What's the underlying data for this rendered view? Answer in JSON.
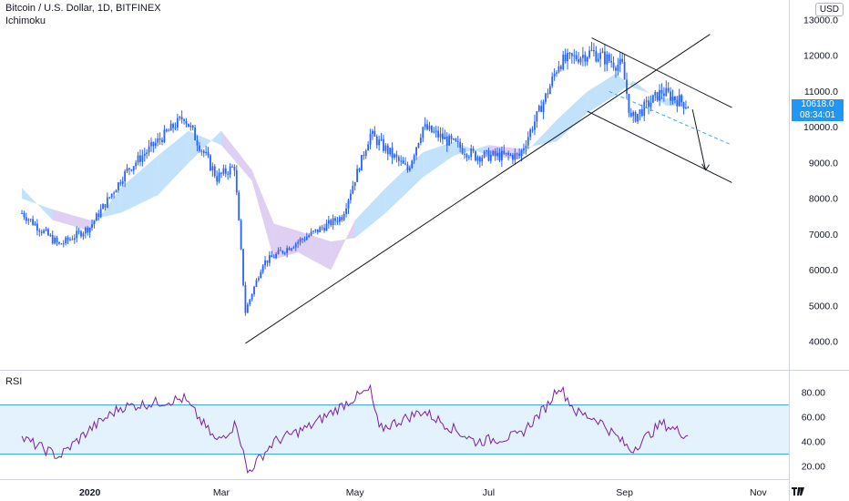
{
  "header": {
    "symbol_title": "Bitcoin / U.S. Dollar, 1D, BITFINEX",
    "indicator": "Ichimoku",
    "currency": "USD",
    "rsi_label": "RSI"
  },
  "price_panel": {
    "last_price": "10618.0",
    "countdown": "08:34:01",
    "last_price_color": "#2196f3"
  },
  "colors": {
    "candle": "#2962ff",
    "cloud_bull": "#90caf9",
    "cloud_bear": "#c4a7e7",
    "rsi_line": "#7b1fa2",
    "rsi_band_fill": "#e3f2fd",
    "rsi_band_line": "#42a5f5",
    "trendline": "#131722"
  },
  "chart_data": [
    {
      "type": "candlestick",
      "title": "Bitcoin / U.S. Dollar, 1D, BITFINEX",
      "indicator": "Ichimoku",
      "ylim": [
        3500,
        13500
      ],
      "yticks": [
        4000,
        5000,
        6000,
        7000,
        8000,
        9000,
        10000,
        11000,
        12000,
        13000
      ],
      "ytick_labels": [
        "4000.0",
        "5000.0",
        "6000.0",
        "7000.0",
        "8000.0",
        "9000.0",
        "10000.0",
        "11000.0",
        "12000.0",
        "13000.0"
      ],
      "xticks": [
        "2020",
        "Mar",
        "May",
        "Jul",
        "Sep",
        "Nov"
      ],
      "close_path": [
        {
          "date": "2019-12-01",
          "price": 7600
        },
        {
          "date": "2019-12-18",
          "price": 6700
        },
        {
          "date": "2020-01-01",
          "price": 7200
        },
        {
          "date": "2020-01-18",
          "price": 8800
        },
        {
          "date": "2020-02-13",
          "price": 10300
        },
        {
          "date": "2020-02-28",
          "price": 8600
        },
        {
          "date": "2020-03-07",
          "price": 8900
        },
        {
          "date": "2020-03-12",
          "price": 4850
        },
        {
          "date": "2020-03-20",
          "price": 6200
        },
        {
          "date": "2020-04-05",
          "price": 6800
        },
        {
          "date": "2020-04-25",
          "price": 7500
        },
        {
          "date": "2020-05-08",
          "price": 9800
        },
        {
          "date": "2020-05-25",
          "price": 8800
        },
        {
          "date": "2020-06-01",
          "price": 10000
        },
        {
          "date": "2020-06-25",
          "price": 9200
        },
        {
          "date": "2020-07-15",
          "price": 9200
        },
        {
          "date": "2020-07-28",
          "price": 11000
        },
        {
          "date": "2020-08-02",
          "price": 11800
        },
        {
          "date": "2020-08-17",
          "price": 12100
        },
        {
          "date": "2020-08-31",
          "price": 11700
        },
        {
          "date": "2020-09-04",
          "price": 10200
        },
        {
          "date": "2020-09-18",
          "price": 11000
        },
        {
          "date": "2020-09-30",
          "price": 10618
        }
      ],
      "cloud": [
        {
          "date": "2019-12-01",
          "a": 8300,
          "b": 8000
        },
        {
          "date": "2019-12-15",
          "a": 7400,
          "b": 7700
        },
        {
          "date": "2020-01-01",
          "a": 7100,
          "b": 7400
        },
        {
          "date": "2020-01-15",
          "a": 8300,
          "b": 7600
        },
        {
          "date": "2020-02-01",
          "a": 9200,
          "b": 8100
        },
        {
          "date": "2020-02-15",
          "a": 9900,
          "b": 9000
        },
        {
          "date": "2020-03-01",
          "a": 9500,
          "b": 9900
        },
        {
          "date": "2020-03-15",
          "a": 8500,
          "b": 8800
        },
        {
          "date": "2020-03-25",
          "a": 6300,
          "b": 7300
        },
        {
          "date": "2020-04-05",
          "a": 6500,
          "b": 7100
        },
        {
          "date": "2020-04-20",
          "a": 6000,
          "b": 6800
        },
        {
          "date": "2020-05-01",
          "a": 7400,
          "b": 6900
        },
        {
          "date": "2020-05-15",
          "a": 8300,
          "b": 7600
        },
        {
          "date": "2020-06-01",
          "a": 9300,
          "b": 8600
        },
        {
          "date": "2020-06-15",
          "a": 9600,
          "b": 9200
        },
        {
          "date": "2020-07-01",
          "a": 9200,
          "b": 9500
        },
        {
          "date": "2020-07-15",
          "a": 9100,
          "b": 9400
        },
        {
          "date": "2020-08-01",
          "a": 10200,
          "b": 9600
        },
        {
          "date": "2020-08-15",
          "a": 11000,
          "b": 10400
        },
        {
          "date": "2020-08-28",
          "a": 11500,
          "b": 10900
        },
        {
          "date": "2020-09-05",
          "a": 11100,
          "b": 11300
        },
        {
          "date": "2020-09-20",
          "a": 10800,
          "b": 10600
        },
        {
          "date": "2020-09-28",
          "a": 10900,
          "b": 10600
        }
      ],
      "trendlines": [
        {
          "name": "rising support",
          "from": {
            "date": "2020-03-12",
            "price": 3950
          },
          "to": {
            "date": "2020-10-10",
            "price": 12600
          }
        },
        {
          "name": "channel upper",
          "from": {
            "date": "2020-08-17",
            "price": 12500
          },
          "to": {
            "date": "2020-10-20",
            "price": 10550
          }
        },
        {
          "name": "channel lower",
          "from": {
            "date": "2020-08-15",
            "price": 10450
          },
          "to": {
            "date": "2020-10-20",
            "price": 8450
          }
        },
        {
          "name": "projection arrow",
          "from": {
            "date": "2020-10-02",
            "price": 10500
          },
          "to": {
            "date": "2020-10-08",
            "price": 8800
          }
        }
      ],
      "dashed_line": {
        "from": {
          "date": "2020-08-25",
          "price": 11000
        },
        "to": {
          "date": "2020-10-20",
          "price": 9500
        }
      }
    },
    {
      "type": "line",
      "title": "RSI",
      "ylim": [
        10,
        95
      ],
      "yticks": [
        20,
        40,
        60,
        80
      ],
      "ytick_labels": [
        "20.00",
        "40.00",
        "60.00",
        "80.00"
      ],
      "band": [
        30,
        70
      ],
      "rsi_path": [
        {
          "date": "2019-12-01",
          "value": 43
        },
        {
          "date": "2019-12-18",
          "value": 28
        },
        {
          "date": "2020-01-01",
          "value": 50
        },
        {
          "date": "2020-01-15",
          "value": 68
        },
        {
          "date": "2020-02-13",
          "value": 75
        },
        {
          "date": "2020-02-28",
          "value": 40
        },
        {
          "date": "2020-03-08",
          "value": 55
        },
        {
          "date": "2020-03-13",
          "value": 15
        },
        {
          "date": "2020-03-25",
          "value": 40
        },
        {
          "date": "2020-04-10",
          "value": 52
        },
        {
          "date": "2020-04-30",
          "value": 75
        },
        {
          "date": "2020-05-08",
          "value": 82
        },
        {
          "date": "2020-05-12",
          "value": 50
        },
        {
          "date": "2020-06-01",
          "value": 65
        },
        {
          "date": "2020-06-25",
          "value": 40
        },
        {
          "date": "2020-07-15",
          "value": 45
        },
        {
          "date": "2020-07-28",
          "value": 70
        },
        {
          "date": "2020-08-02",
          "value": 86
        },
        {
          "date": "2020-08-10",
          "value": 64
        },
        {
          "date": "2020-08-20",
          "value": 58
        },
        {
          "date": "2020-09-04",
          "value": 33
        },
        {
          "date": "2020-09-18",
          "value": 55
        },
        {
          "date": "2020-09-30",
          "value": 45
        }
      ]
    }
  ]
}
